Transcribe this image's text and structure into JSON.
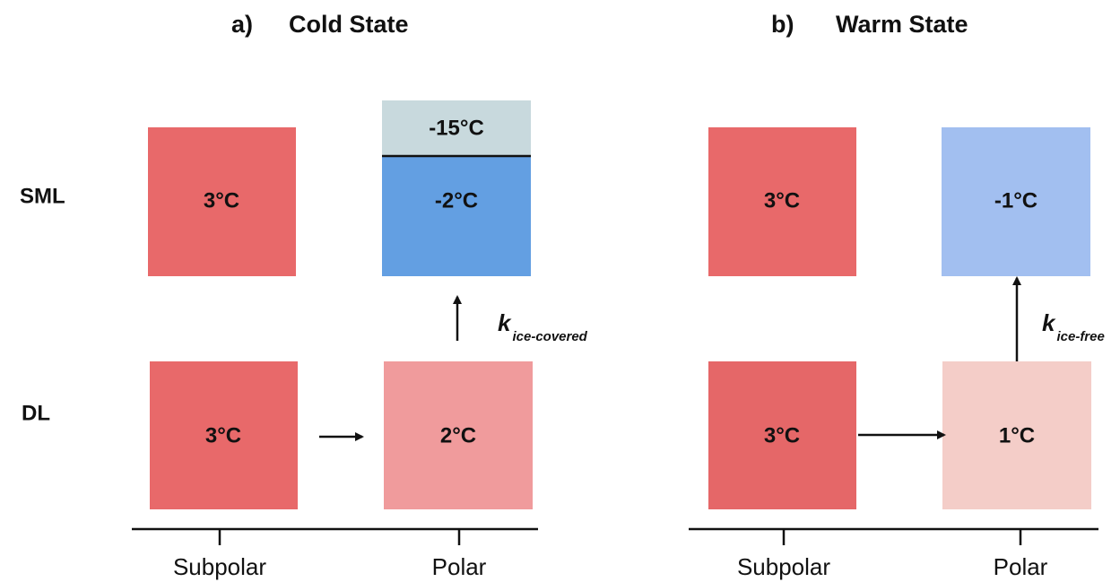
{
  "panels": [
    {
      "letter": "a)",
      "title": "Cold State",
      "boxes": {
        "sml_subpolar": "3°C",
        "sml_polar_ice": "-15°C",
        "sml_polar": "-2°C",
        "dl_subpolar": "3°C",
        "dl_polar": "2°C"
      },
      "k": {
        "symbol": "k",
        "subscript": "ice-covered"
      },
      "x_labels": [
        "Subpolar",
        "Polar"
      ]
    },
    {
      "letter": "b)",
      "title": "Warm State",
      "boxes": {
        "sml_subpolar": "3°C",
        "sml_polar": "-1°C",
        "dl_subpolar": "3°C",
        "dl_polar": "1°C"
      },
      "k": {
        "symbol": "k",
        "subscript": "ice-free"
      },
      "x_labels": [
        "Subpolar",
        "Polar"
      ]
    }
  ],
  "row_labels": [
    "SML",
    "DL"
  ]
}
